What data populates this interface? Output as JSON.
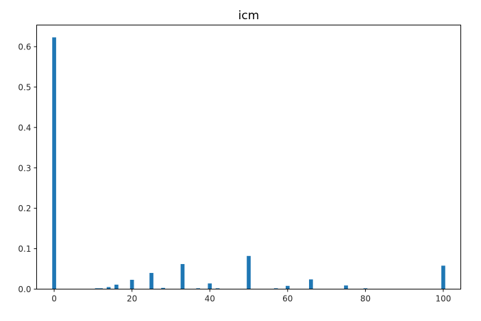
{
  "chart_data": {
    "type": "bar",
    "title": "icm",
    "xlabel": "",
    "ylabel": "",
    "xlim": [
      -4.5,
      104.5
    ],
    "ylim": [
      0,
      0.6535
    ],
    "xticks": [
      0,
      20,
      40,
      60,
      80,
      100
    ],
    "yticks": [
      0.0,
      0.1,
      0.2,
      0.3,
      0.4,
      0.5,
      0.6
    ],
    "bar_width": 1,
    "color": "#1f77b4",
    "grid": false,
    "points": [
      {
        "x": 0,
        "value": 0.623
      },
      {
        "x": 11,
        "value": 0.002
      },
      {
        "x": 12,
        "value": 0.002
      },
      {
        "x": 14,
        "value": 0.005
      },
      {
        "x": 16,
        "value": 0.011
      },
      {
        "x": 20,
        "value": 0.023
      },
      {
        "x": 25,
        "value": 0.04
      },
      {
        "x": 28,
        "value": 0.003
      },
      {
        "x": 33,
        "value": 0.062
      },
      {
        "x": 37,
        "value": 0.002
      },
      {
        "x": 40,
        "value": 0.014
      },
      {
        "x": 42,
        "value": 0.002
      },
      {
        "x": 50,
        "value": 0.082
      },
      {
        "x": 57,
        "value": 0.002
      },
      {
        "x": 60,
        "value": 0.008
      },
      {
        "x": 66,
        "value": 0.024
      },
      {
        "x": 75,
        "value": 0.009
      },
      {
        "x": 80,
        "value": 0.002
      },
      {
        "x": 100,
        "value": 0.058
      }
    ]
  }
}
